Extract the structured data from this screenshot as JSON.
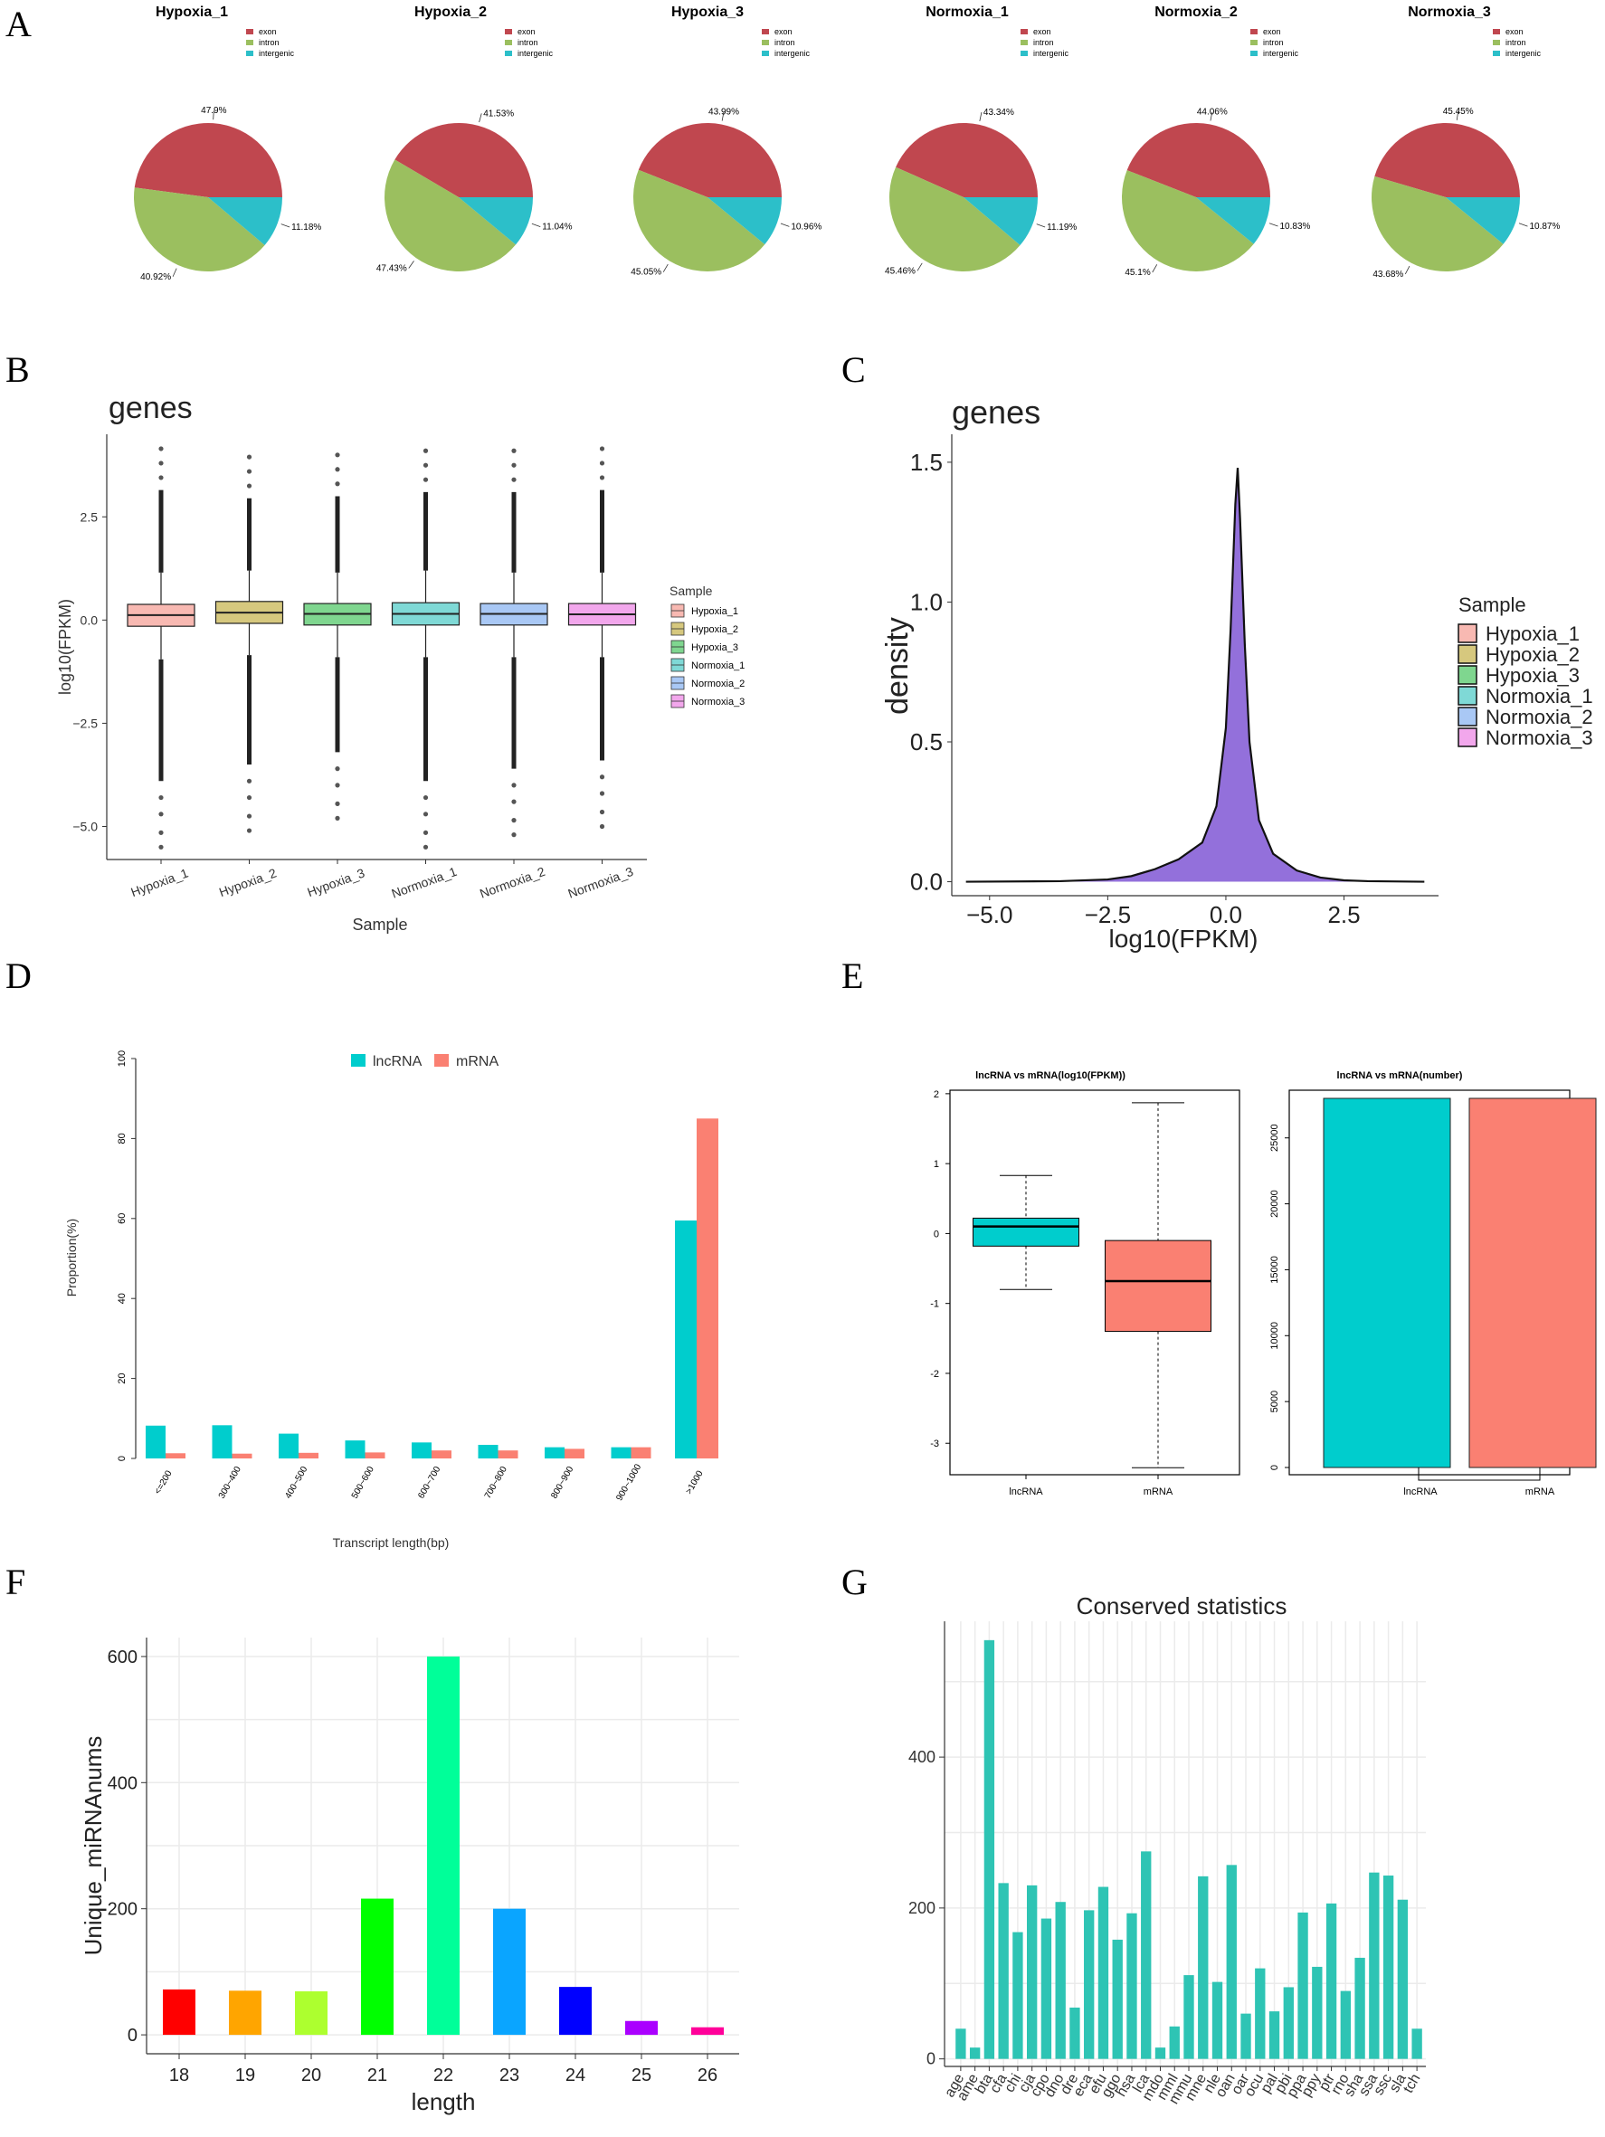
{
  "panels": {
    "A": "A",
    "B": "B",
    "C": "C",
    "D": "D",
    "E": "E",
    "F": "F",
    "G": "G"
  },
  "colors": {
    "exon": "#c0474f",
    "intron": "#9bbf5f",
    "intergenic": "#2cbfc9",
    "lncRNA": "#00cdcd",
    "mRNA": "#fa8072",
    "Hypoxia_1": "#f8b9b2",
    "Hypoxia_2": "#d6c87e",
    "Hypoxia_3": "#7fd68f",
    "Normoxia_1": "#7fd9d6",
    "Normoxia_2": "#a9c8f5",
    "Normoxia_3": "#f2a7ec",
    "density_fill": "#9370db",
    "G_bar": "#2ec4b4"
  },
  "chart_data": [
    {
      "id": "A",
      "type": "pie",
      "legend": [
        "exon",
        "intron",
        "intergenic"
      ],
      "pies": [
        {
          "title": "Hypoxia_1",
          "values": [
            47.9,
            40.92,
            11.18
          ],
          "labels": [
            "47.9%",
            "40.92%",
            "11.18%"
          ]
        },
        {
          "title": "Hypoxia_2",
          "values": [
            41.53,
            47.43,
            11.04
          ],
          "labels": [
            "41.53%",
            "47.43%",
            "11.04%"
          ]
        },
        {
          "title": "Hypoxia_3",
          "values": [
            43.99,
            45.05,
            10.96
          ],
          "labels": [
            "43.99%",
            "45.05%",
            "10.96%"
          ]
        },
        {
          "title": "Normoxia_1",
          "values": [
            43.34,
            45.46,
            11.19
          ],
          "labels": [
            "43.34%",
            "45.46%",
            "11.19%"
          ]
        },
        {
          "title": "Normoxia_2",
          "values": [
            44.06,
            45.1,
            10.83
          ],
          "labels": [
            "44.06%",
            "45.1%",
            "10.83%"
          ]
        },
        {
          "title": "Normoxia_3",
          "values": [
            45.45,
            43.68,
            10.87
          ],
          "labels": [
            "45.45%",
            "43.68%",
            "10.87%"
          ]
        }
      ]
    },
    {
      "id": "B",
      "type": "boxplot",
      "title": "genes",
      "xlabel": "Sample",
      "ylabel": "log10(FPKM)",
      "categories": [
        "Hypoxia_1",
        "Hypoxia_2",
        "Hypoxia_3",
        "Normoxia_1",
        "Normoxia_2",
        "Normoxia_3"
      ],
      "boxes": [
        {
          "q1": -0.15,
          "median": 0.12,
          "q3": 0.38,
          "whisker_low": -0.95,
          "whisker_high": 1.15,
          "out_low": -5.5,
          "out_high": 4.15
        },
        {
          "q1": -0.08,
          "median": 0.18,
          "q3": 0.45,
          "whisker_low": -0.85,
          "whisker_high": 1.2,
          "out_low": -5.1,
          "out_high": 3.95
        },
        {
          "q1": -0.12,
          "median": 0.15,
          "q3": 0.4,
          "whisker_low": -0.9,
          "whisker_high": 1.15,
          "out_low": -4.8,
          "out_high": 4.0
        },
        {
          "q1": -0.12,
          "median": 0.15,
          "q3": 0.42,
          "whisker_low": -0.9,
          "whisker_high": 1.2,
          "out_low": -5.5,
          "out_high": 4.1
        },
        {
          "q1": -0.12,
          "median": 0.15,
          "q3": 0.4,
          "whisker_low": -0.9,
          "whisker_high": 1.15,
          "out_low": -5.2,
          "out_high": 4.1
        },
        {
          "q1": -0.12,
          "median": 0.14,
          "q3": 0.4,
          "whisker_low": -0.9,
          "whisker_high": 1.15,
          "out_low": -5.0,
          "out_high": 4.15
        }
      ],
      "yticks": [
        -5.0,
        -2.5,
        0.0,
        2.5
      ],
      "ytick_labels": [
        "−5.0",
        "−2.5",
        "0.0",
        "2.5"
      ],
      "ylim": [
        -5.8,
        4.5
      ],
      "legend_title": "Sample"
    },
    {
      "id": "C",
      "type": "area",
      "title": "genes",
      "xlabel": "log10(FPKM)",
      "ylabel": "density",
      "x": [
        -5.5,
        -3.5,
        -2.5,
        -2.0,
        -1.5,
        -1.0,
        -0.5,
        -0.2,
        0.0,
        0.1,
        0.2,
        0.25,
        0.3,
        0.4,
        0.5,
        0.7,
        1.0,
        1.5,
        2.0,
        2.5,
        3.0,
        4.2
      ],
      "y": [
        0.0,
        0.002,
        0.008,
        0.02,
        0.045,
        0.08,
        0.14,
        0.27,
        0.55,
        0.9,
        1.35,
        1.48,
        1.3,
        0.85,
        0.5,
        0.22,
        0.1,
        0.04,
        0.015,
        0.005,
        0.002,
        0.0
      ],
      "xticks": [
        -5.0,
        -2.5,
        0.0,
        2.5
      ],
      "xtick_labels": [
        "−5.0",
        "−2.5",
        "0.0",
        "2.5"
      ],
      "yticks": [
        0.0,
        0.5,
        1.0,
        1.5
      ],
      "ytick_labels": [
        "0.0",
        "0.5",
        "1.0",
        "1.5"
      ],
      "xlim": [
        -5.8,
        4.5
      ],
      "ylim": [
        -0.05,
        1.6
      ],
      "legend_title": "Sample"
    },
    {
      "id": "D",
      "type": "bar",
      "xlabel": "Transcript length(bp)",
      "ylabel": "Proportion(%)",
      "categories": [
        "<=200",
        "300~400",
        "400~500",
        "500~600",
        "600~700",
        "700~800",
        "800~900",
        "900~1000",
        ">1000"
      ],
      "series": [
        {
          "name": "lncRNA",
          "values": [
            8.2,
            8.3,
            6.2,
            4.5,
            4.0,
            3.4,
            2.8,
            2.8,
            59.5
          ]
        },
        {
          "name": "mRNA",
          "values": [
            1.3,
            1.2,
            1.4,
            1.5,
            2.0,
            2.0,
            2.4,
            2.8,
            85.0
          ]
        }
      ],
      "yticks": [
        0,
        20,
        40,
        60,
        80,
        100
      ],
      "ylim": [
        0,
        100
      ]
    },
    {
      "id": "E1",
      "type": "boxplot",
      "title": "lncRNA vs mRNA(log10(FPKM))",
      "categories": [
        "lncRNA",
        "mRNA"
      ],
      "boxes": [
        {
          "q1": -0.18,
          "median": 0.1,
          "q3": 0.22,
          "whisker_low": -0.8,
          "whisker_high": 0.83
        },
        {
          "q1": -1.4,
          "median": -0.68,
          "q3": -0.1,
          "whisker_low": -3.35,
          "whisker_high": 1.87
        }
      ],
      "yticks": [
        -3,
        -2,
        -1,
        0,
        1,
        2
      ],
      "ylim": [
        -3.45,
        2.05
      ]
    },
    {
      "id": "E2",
      "type": "bar",
      "title": "lncRNA vs mRNA(number)",
      "categories": [
        "lncRNA",
        "mRNA"
      ],
      "values": [
        28000,
        28000
      ],
      "yticks": [
        0,
        5000,
        10000,
        15000,
        20000,
        25000
      ],
      "ylim": [
        0,
        28000
      ]
    },
    {
      "id": "F",
      "type": "bar",
      "xlabel": "length",
      "ylabel": "Unique_miRNAnums",
      "categories": [
        "18",
        "19",
        "20",
        "21",
        "22",
        "23",
        "24",
        "25",
        "26"
      ],
      "values": [
        72,
        70,
        69,
        216,
        600,
        200,
        76,
        22,
        12
      ],
      "bar_colors": [
        "#ff0000",
        "#ffa500",
        "#adff2f",
        "#00ff00",
        "#00ff99",
        "#0aa5ff",
        "#0000ff",
        "#aa00ff",
        "#ff0099"
      ],
      "yticks": [
        0,
        200,
        400,
        600
      ],
      "ylim": [
        -30,
        630
      ]
    },
    {
      "id": "G",
      "type": "bar",
      "title": "Conserved statistics",
      "categories": [
        "age",
        "ame",
        "bta",
        "cfa",
        "chi",
        "cja",
        "cpo",
        "dno",
        "dre",
        "eca",
        "efu",
        "ggo",
        "hsa",
        "lca",
        "mdo",
        "mml",
        "mmu",
        "mne",
        "nle",
        "oan",
        "oar",
        "ocu",
        "pal",
        "pbi",
        "ppa",
        "ppy",
        "ptr",
        "rno",
        "sha",
        "ssa",
        "ssc",
        "sla",
        "tch"
      ],
      "values": [
        40,
        15,
        555,
        233,
        168,
        230,
        186,
        208,
        68,
        197,
        228,
        158,
        193,
        275,
        15,
        43,
        111,
        242,
        102,
        257,
        60,
        120,
        63,
        95,
        194,
        122,
        206,
        90,
        134,
        247,
        243,
        211,
        40
      ],
      "extra_values_note": "",
      "yticks": [
        0,
        200,
        400
      ],
      "ylim": [
        -10,
        580
      ]
    }
  ]
}
